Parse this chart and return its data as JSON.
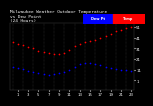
{
  "title": "Milwaukee Weather Outdoor Temperature\nvs Dew Point\n(24 Hours)",
  "bg_color": "#000000",
  "plot_bg_color": "#000000",
  "grid_color": "#555555",
  "temp_color": "#ff0000",
  "dew_color": "#0000ff",
  "legend_temp_color": "#ff2222",
  "legend_dew_color": "#2222ff",
  "ylim": [
    -8,
    55
  ],
  "ytick_vals": [
    1,
    11,
    21,
    31,
    41,
    51
  ],
  "hours": [
    0,
    1,
    2,
    3,
    4,
    5,
    6,
    7,
    8,
    9,
    10,
    11,
    12,
    13,
    14,
    15,
    16,
    17,
    18,
    19,
    20,
    21,
    22,
    23
  ],
  "temp_values": [
    37,
    35,
    34,
    32,
    31,
    29,
    28,
    27,
    26,
    26,
    27,
    30,
    33,
    35,
    37,
    38,
    39,
    41,
    43,
    45,
    47,
    48,
    50,
    51
  ],
  "dew_values": [
    14,
    13,
    12,
    10,
    9,
    8,
    7,
    6,
    7,
    8,
    9,
    11,
    14,
    16,
    17,
    17,
    16,
    15,
    14,
    13,
    12,
    11,
    11,
    10
  ],
  "temp_label": "Temp",
  "dew_label": "Dew Pt",
  "title_fontsize": 3.2,
  "tick_fontsize": 2.8,
  "marker_size": 1.5,
  "xlabel_vals": [
    1,
    3,
    5,
    7,
    9,
    11,
    13,
    15,
    17,
    19,
    21,
    23
  ],
  "xtick_labels": [
    "1",
    "3",
    "5",
    "7",
    "9",
    "11",
    "13",
    "15",
    "17",
    "19",
    "21",
    "23"
  ]
}
